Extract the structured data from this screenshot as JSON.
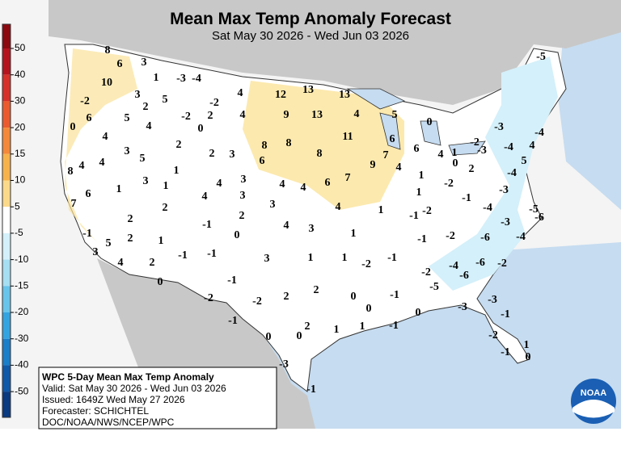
{
  "header": {
    "title": "Mean Max Temp Anomaly Forecast",
    "subtitle": "Sat May 30 2026 - Wed Jun 03 2026"
  },
  "colorbar": {
    "ticks": [
      50,
      40,
      30,
      20,
      15,
      10,
      5,
      -5,
      -10,
      -15,
      -20,
      -30,
      -40,
      -50
    ],
    "colors": [
      "#8b0a10",
      "#b4141e",
      "#d6302a",
      "#ea5a2e",
      "#f3893a",
      "#f7b24c",
      "#fbd98a",
      "#ffffff",
      "#d4f0fa",
      "#a6def2",
      "#68c4ea",
      "#34a4e0",
      "#1a7ec8",
      "#1058a8",
      "#0a3a80"
    ]
  },
  "info": {
    "lines": [
      "WPC 5-Day Mean Max Temp Anomaly",
      "Valid: Sat May 30 2026 - Wed Jun 03 2026",
      "Issued: 1649Z Wed May 27 2026",
      "Forecaster: SCHICHTEL",
      "DOC/NOAA/NWS/NCEP/WPC"
    ]
  },
  "logo": "NOAA",
  "stations": [
    8,
    6,
    3,
    1,
    10,
    -3,
    -4,
    3,
    5,
    -2,
    5,
    6,
    2,
    -2,
    4,
    12,
    13,
    13,
    0,
    4,
    -2,
    2,
    4,
    9,
    13,
    4,
    5,
    4,
    0,
    11,
    6,
    0,
    3,
    5,
    2,
    8,
    8,
    6,
    2,
    3,
    8,
    7,
    4,
    1,
    4,
    8,
    4,
    1,
    6,
    9,
    4,
    0,
    2,
    3,
    1,
    1,
    4,
    3,
    4,
    4,
    6,
    7,
    1,
    -2,
    6,
    7,
    4,
    3,
    3,
    2,
    4,
    1,
    1,
    -1,
    -1,
    -2,
    2,
    -1,
    2,
    4,
    3,
    1,
    -1,
    2,
    0,
    1,
    5,
    3,
    4,
    -1,
    -2,
    2,
    -1,
    -1,
    3,
    1,
    1,
    -2,
    -1,
    0,
    -1,
    -2,
    -2,
    2,
    2,
    0,
    -1,
    0,
    -1,
    0,
    0,
    2,
    1,
    1,
    -1,
    0,
    -2,
    -5,
    -4,
    -6,
    -6,
    -2,
    -6,
    -4,
    -3,
    -6,
    -4,
    -3,
    5,
    -5,
    -4,
    -3,
    -3,
    -2,
    -4,
    4,
    -4,
    -5,
    -3,
    -1,
    -3,
    -2,
    -1,
    1,
    0,
    -3,
    -1
  ]
}
